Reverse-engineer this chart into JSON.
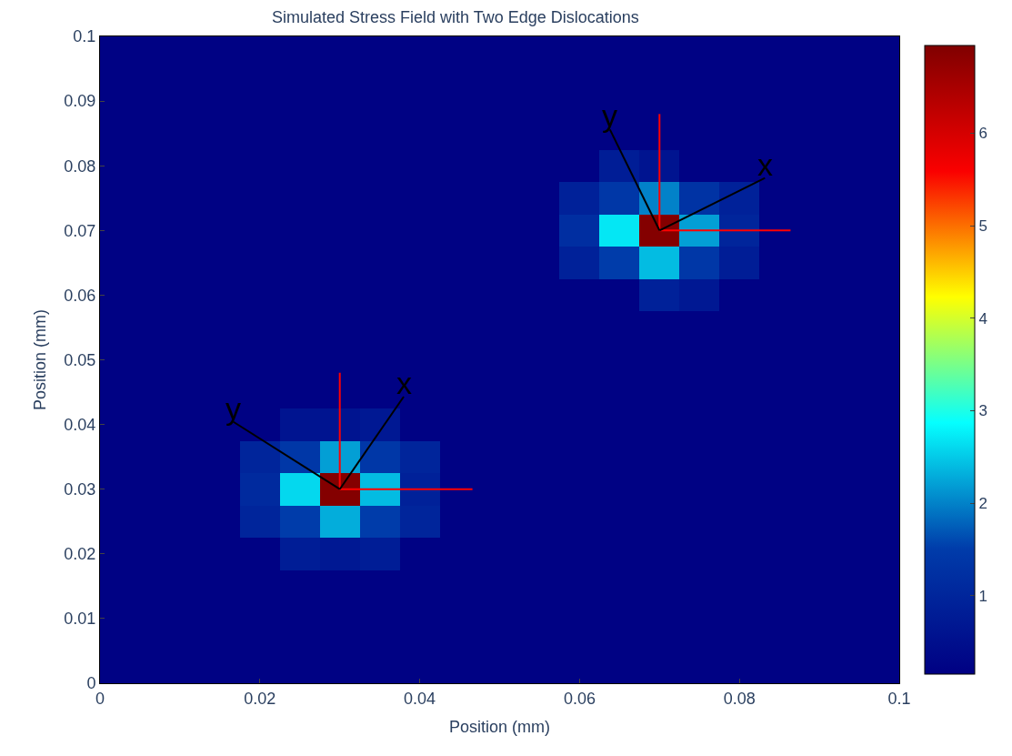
{
  "chart_data": {
    "type": "heatmap",
    "title": "Simulated Stress Field with Two Edge Dislocations",
    "xlabel": "Position (mm)",
    "ylabel": "Position (mm)",
    "x": [
      0,
      0.005,
      0.01,
      0.015,
      0.02,
      0.025,
      0.03,
      0.035,
      0.04,
      0.045,
      0.05,
      0.055,
      0.06,
      0.065,
      0.07,
      0.075,
      0.08,
      0.085,
      0.09,
      0.095,
      0.1
    ],
    "cells": [
      [
        0.2,
        0.2,
        0.2,
        0.2,
        0.2,
        0.2,
        0.2,
        0.2,
        0.2,
        0.2,
        0.2,
        0.2,
        0.2,
        0.2,
        0.2,
        0.2,
        0.2,
        0.2,
        0.2,
        0.2,
        0.2
      ],
      [
        0.2,
        0.2,
        0.2,
        0.2,
        0.2,
        0.2,
        0.2,
        0.2,
        0.2,
        0.2,
        0.2,
        0.2,
        0.2,
        0.2,
        0.2,
        0.2,
        0.2,
        0.2,
        0.2,
        0.2,
        0.2
      ],
      [
        0.2,
        0.2,
        0.2,
        0.2,
        0.2,
        0.2,
        0.2,
        0.2,
        0.2,
        0.2,
        0.2,
        0.2,
        0.2,
        0.2,
        0.2,
        0.2,
        0.2,
        0.2,
        0.2,
        0.2,
        0.2
      ],
      [
        0.2,
        0.2,
        0.2,
        0.2,
        0.2,
        0.2,
        0.2,
        0.2,
        0.2,
        0.2,
        0.2,
        0.2,
        0.2,
        0.2,
        0.2,
        0.2,
        0.2,
        0.2,
        0.2,
        0.2,
        0.2
      ],
      [
        0.2,
        0.2,
        0.2,
        0.2,
        0.2,
        0.2,
        0.2,
        0.2,
        0.2,
        0.2,
        0.2,
        0.2,
        0.2,
        0.8,
        0.6,
        0.2,
        0.2,
        0.2,
        0.2,
        0.2,
        0.2
      ],
      [
        0.2,
        0.2,
        0.2,
        0.2,
        0.2,
        0.2,
        0.2,
        0.2,
        0.2,
        0.2,
        0.2,
        0.2,
        0.9,
        1.4,
        2.0,
        1.3,
        0.9,
        0.2,
        0.2,
        0.2,
        0.2
      ],
      [
        0.2,
        0.2,
        0.2,
        0.2,
        0.2,
        0.2,
        0.2,
        0.2,
        0.2,
        0.2,
        0.2,
        0.2,
        1.2,
        2.7,
        6.9,
        2.2,
        1.0,
        0.2,
        0.2,
        0.2,
        0.2
      ],
      [
        0.2,
        0.2,
        0.2,
        0.2,
        0.2,
        0.2,
        0.2,
        0.2,
        0.2,
        0.2,
        0.2,
        0.2,
        0.9,
        1.5,
        2.4,
        1.4,
        0.8,
        0.2,
        0.2,
        0.2,
        0.2
      ],
      [
        0.2,
        0.2,
        0.2,
        0.2,
        0.2,
        0.2,
        0.2,
        0.2,
        0.2,
        0.2,
        0.2,
        0.2,
        0.2,
        0.2,
        0.9,
        0.7,
        0.2,
        0.2,
        0.2,
        0.2,
        0.2
      ],
      [
        0.2,
        0.2,
        0.2,
        0.2,
        0.2,
        0.2,
        0.2,
        0.2,
        0.2,
        0.2,
        0.2,
        0.2,
        0.2,
        0.2,
        0.2,
        0.2,
        0.2,
        0.2,
        0.2,
        0.2,
        0.2
      ],
      [
        0.2,
        0.2,
        0.2,
        0.2,
        0.2,
        0.2,
        0.2,
        0.2,
        0.2,
        0.2,
        0.2,
        0.2,
        0.2,
        0.2,
        0.2,
        0.2,
        0.2,
        0.2,
        0.2,
        0.2,
        0.2
      ],
      [
        0.2,
        0.2,
        0.2,
        0.2,
        0.2,
        0.2,
        0.2,
        0.2,
        0.2,
        0.2,
        0.2,
        0.2,
        0.2,
        0.2,
        0.2,
        0.2,
        0.2,
        0.2,
        0.2,
        0.2,
        0.2
      ],
      [
        0.2,
        0.2,
        0.2,
        0.2,
        0.2,
        0.6,
        0.6,
        0.7,
        0.2,
        0.2,
        0.2,
        0.2,
        0.2,
        0.2,
        0.2,
        0.2,
        0.2,
        0.2,
        0.2,
        0.2,
        0.2
      ],
      [
        0.2,
        0.2,
        0.2,
        0.2,
        1.0,
        1.4,
        2.2,
        1.4,
        1.0,
        0.2,
        0.2,
        0.2,
        0.2,
        0.2,
        0.2,
        0.2,
        0.2,
        0.2,
        0.2,
        0.2,
        0.2
      ],
      [
        0.2,
        0.2,
        0.2,
        0.2,
        1.1,
        2.6,
        6.9,
        2.4,
        0.9,
        0.2,
        0.2,
        0.2,
        0.2,
        0.2,
        0.2,
        0.2,
        0.2,
        0.2,
        0.2,
        0.2,
        0.2
      ],
      [
        0.2,
        0.2,
        0.2,
        0.2,
        1.0,
        1.5,
        2.3,
        1.5,
        1.0,
        0.2,
        0.2,
        0.2,
        0.2,
        0.2,
        0.2,
        0.2,
        0.2,
        0.2,
        0.2,
        0.2,
        0.2
      ],
      [
        0.2,
        0.2,
        0.2,
        0.2,
        0.2,
        0.8,
        0.7,
        0.8,
        0.2,
        0.2,
        0.2,
        0.2,
        0.2,
        0.2,
        0.2,
        0.2,
        0.2,
        0.2,
        0.2,
        0.2,
        0.2
      ],
      [
        0.2,
        0.2,
        0.2,
        0.2,
        0.2,
        0.2,
        0.2,
        0.2,
        0.2,
        0.2,
        0.2,
        0.2,
        0.2,
        0.2,
        0.2,
        0.2,
        0.2,
        0.2,
        0.2,
        0.2,
        0.2
      ],
      [
        0.2,
        0.2,
        0.2,
        0.2,
        0.2,
        0.2,
        0.2,
        0.2,
        0.2,
        0.2,
        0.2,
        0.2,
        0.2,
        0.2,
        0.2,
        0.2,
        0.2,
        0.2,
        0.2,
        0.2,
        0.2
      ],
      [
        0.2,
        0.2,
        0.2,
        0.2,
        0.2,
        0.2,
        0.2,
        0.2,
        0.2,
        0.2,
        0.2,
        0.2,
        0.2,
        0.2,
        0.2,
        0.2,
        0.2,
        0.2,
        0.2,
        0.2,
        0.2
      ],
      [
        0.2,
        0.2,
        0.2,
        0.2,
        0.2,
        0.2,
        0.2,
        0.2,
        0.2,
        0.2,
        0.2,
        0.2,
        0.2,
        0.2,
        0.2,
        0.2,
        0.2,
        0.2,
        0.2,
        0.2,
        0.2
      ]
    ],
    "clim": [
      0.15,
      6.95
    ],
    "cticks": [
      1,
      2,
      3,
      4,
      5,
      6
    ],
    "xlim": [
      0,
      0.1
    ],
    "ylim": [
      0,
      0.1
    ],
    "xticks": [
      0,
      0.02,
      0.04,
      0.06,
      0.08,
      0.1
    ],
    "yticks": [
      0,
      0.01,
      0.02,
      0.03,
      0.04,
      0.05,
      0.06,
      0.07,
      0.08,
      0.09,
      0.1
    ],
    "series": [
      {
        "type": "line",
        "color": "#ff0000",
        "x": [
          0.03,
          0.03
        ],
        "values": [
          0.03,
          0.048
        ]
      },
      {
        "type": "line",
        "color": "#ff0000",
        "x": [
          0.03,
          0.0466
        ],
        "values": [
          0.03,
          0.03
        ]
      },
      {
        "type": "line",
        "color": "#000000",
        "x": [
          0.03,
          0.0167
        ],
        "values": [
          0.03,
          0.0404
        ]
      },
      {
        "type": "line",
        "color": "#000000",
        "x": [
          0.03,
          0.038
        ],
        "values": [
          0.03,
          0.0443
        ]
      },
      {
        "type": "line",
        "color": "#ff0000",
        "x": [
          0.07,
          0.07
        ],
        "values": [
          0.07,
          0.088
        ]
      },
      {
        "type": "line",
        "color": "#ff0000",
        "x": [
          0.07,
          0.0864
        ],
        "values": [
          0.07,
          0.07
        ]
      },
      {
        "type": "line",
        "color": "#000000",
        "x": [
          0.07,
          0.0638
        ],
        "values": [
          0.07,
          0.0856
        ]
      },
      {
        "type": "line",
        "color": "#000000",
        "x": [
          0.07,
          0.0832
        ],
        "values": [
          0.07,
          0.0781
        ]
      }
    ],
    "annotations": [
      {
        "text": "y",
        "x": 0.0167,
        "y": 0.0404
      },
      {
        "text": "x",
        "x": 0.038,
        "y": 0.0443
      },
      {
        "text": "y",
        "x": 0.0638,
        "y": 0.0856
      },
      {
        "text": "x",
        "x": 0.0832,
        "y": 0.0781
      }
    ]
  }
}
